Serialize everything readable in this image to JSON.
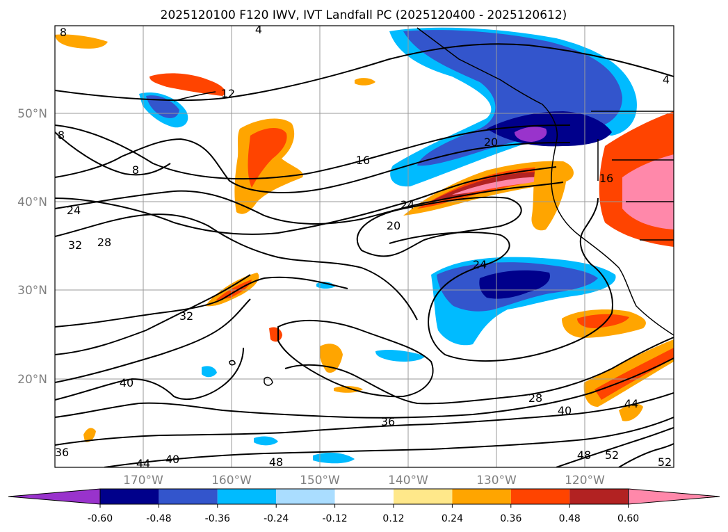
{
  "title": "2025120100 F120 IWV, IVT Landfall PC (2025120400 - 2025120612)",
  "lat_ticks": [
    "50°N",
    "40°N",
    "30°N",
    "20°N"
  ],
  "lon_ticks": [
    "170°W",
    "160°W",
    "150°W",
    "140°W",
    "130°W",
    "120°W"
  ],
  "colorbar": {
    "tick_labels": [
      "-0.60",
      "-0.48",
      "-0.36",
      "-0.24",
      "-0.12",
      "0.12",
      "0.24",
      "0.36",
      "0.48",
      "0.60"
    ],
    "colors": [
      "#9933cc",
      "#00008b",
      "#3355cc",
      "#00bbff",
      "#aaddff",
      "#ffffff",
      "#ffe88a",
      "#ffa500",
      "#ff4400",
      "#b22222",
      "#ff88aa"
    ]
  },
  "contour_labels": [
    "8",
    "4",
    "4",
    "12",
    "8",
    "8",
    "16",
    "20",
    "20",
    "24",
    "24",
    "24",
    "28",
    "28",
    "32",
    "32",
    "36",
    "36",
    "40",
    "40",
    "40",
    "44",
    "44",
    "48",
    "48",
    "52",
    "52",
    "16"
  ],
  "colors": {
    "grid": "#9a9a9a",
    "contour": "#000000",
    "coast": "#000000"
  }
}
